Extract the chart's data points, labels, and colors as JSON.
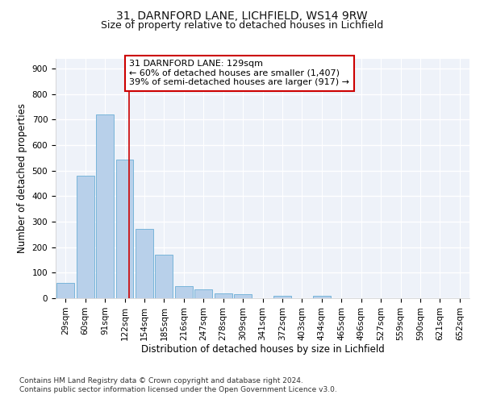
{
  "title_line1": "31, DARNFORD LANE, LICHFIELD, WS14 9RW",
  "title_line2": "Size of property relative to detached houses in Lichfield",
  "xlabel": "Distribution of detached houses by size in Lichfield",
  "ylabel": "Number of detached properties",
  "categories": [
    "29sqm",
    "60sqm",
    "91sqm",
    "122sqm",
    "154sqm",
    "185sqm",
    "216sqm",
    "247sqm",
    "278sqm",
    "309sqm",
    "341sqm",
    "372sqm",
    "403sqm",
    "434sqm",
    "465sqm",
    "496sqm",
    "527sqm",
    "559sqm",
    "590sqm",
    "621sqm",
    "652sqm"
  ],
  "values": [
    60,
    480,
    720,
    545,
    272,
    172,
    48,
    35,
    18,
    15,
    0,
    10,
    0,
    10,
    0,
    0,
    0,
    0,
    0,
    0,
    0
  ],
  "bar_color": "#b8d0ea",
  "bar_edge_color": "#6aaed6",
  "red_line_x": 3.23,
  "annotation_text": "31 DARNFORD LANE: 129sqm\n← 60% of detached houses are smaller (1,407)\n39% of semi-detached houses are larger (917) →",
  "annotation_box_color": "#ffffff",
  "annotation_box_edge_color": "#cc0000",
  "ylim": [
    0,
    940
  ],
  "yticks": [
    0,
    100,
    200,
    300,
    400,
    500,
    600,
    700,
    800,
    900
  ],
  "footer_text": "Contains HM Land Registry data © Crown copyright and database right 2024.\nContains public sector information licensed under the Open Government Licence v3.0.",
  "background_color": "#eef2f9",
  "grid_color": "#ffffff",
  "title_fontsize": 10,
  "subtitle_fontsize": 9,
  "axis_label_fontsize": 8.5,
  "tick_fontsize": 7.5,
  "annotation_fontsize": 8,
  "footer_fontsize": 6.5
}
